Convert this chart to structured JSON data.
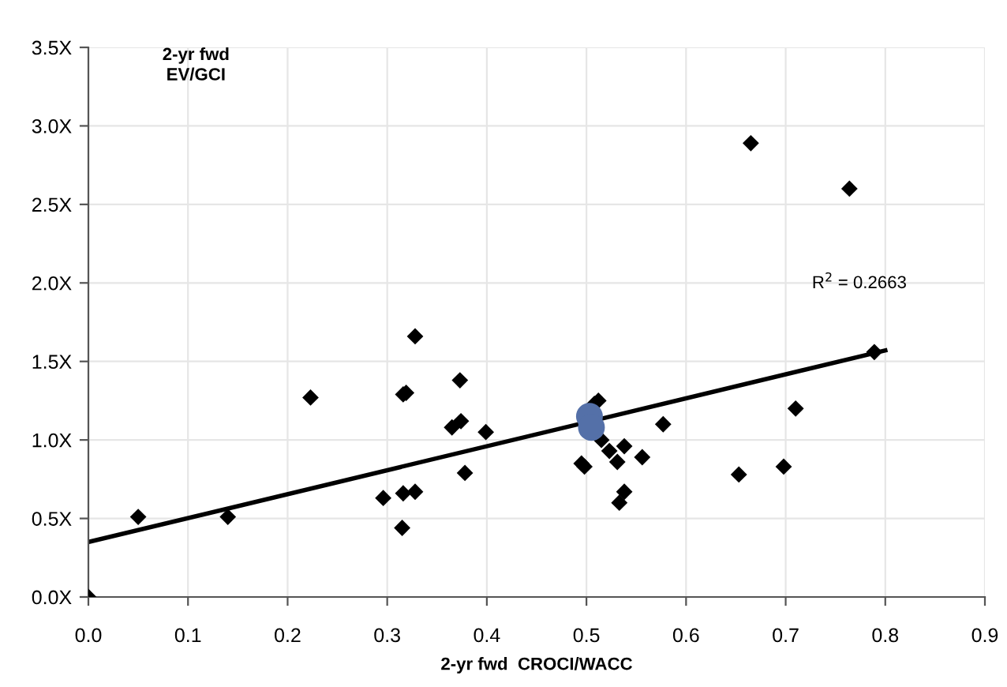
{
  "chart_data": {
    "type": "scatter",
    "ylabel": "2-yr fwd\nEV/GCI",
    "xlabel": "2-yr fwd  CROCI/WACC",
    "xlim": [
      0,
      0.9
    ],
    "xticks": [
      {
        "value": 0,
        "label": "0.0"
      },
      0.1,
      0.2,
      0.3,
      0.4,
      0.5,
      0.6,
      0.7,
      0.8,
      0.9
    ],
    "ylim": [
      0,
      3.5
    ],
    "yticks": [
      {
        "value": 0,
        "label": "0.0X"
      },
      {
        "value": 0.5,
        "label": "0.5X"
      },
      {
        "value": 1,
        "label": "1.0X"
      },
      {
        "value": 1.5,
        "label": "1.5X"
      },
      {
        "value": 2,
        "label": "2.0X"
      },
      {
        "value": 2.5,
        "label": "2.5X"
      },
      {
        "value": 3,
        "label": "3.0X"
      },
      {
        "value": 3.5,
        "label": "3.5X"
      }
    ],
    "grid": true,
    "legend": false,
    "annotations": [
      "R$^{2}$ = 0.2663"
    ],
    "series": [
      {
        "color": "#000000",
        "marker": "diamond",
        "x": [
          0,
          0.05,
          0.14,
          0.223,
          0.296,
          0.316,
          0.319,
          0.328,
          0.316,
          0.328,
          0.315,
          0.373,
          0.365,
          0.374,
          0.399,
          0.378,
          0.512,
          0.508,
          0.515,
          0.523,
          0.538,
          0.531,
          0.556,
          0.495,
          0.498,
          0.538,
          0.533,
          0.577,
          0.653,
          0.698,
          0.71,
          0.789,
          0.665,
          0.764
        ],
        "values": [
          0,
          0.51,
          0.51,
          1.27,
          0.63,
          1.29,
          1.3,
          1.66,
          0.66,
          0.67,
          0.44,
          1.38,
          1.08,
          1.12,
          1.05,
          0.79,
          1.25,
          1.23,
          1.0,
          0.93,
          0.96,
          0.86,
          0.89,
          0.85,
          0.83,
          0.67,
          0.6,
          1.1,
          0.78,
          0.83,
          1.2,
          1.56,
          2.89,
          2.6
        ]
      },
      {
        "color": "#5470a8",
        "marker": "circle",
        "x": [
          0.503,
          0.505
        ],
        "values": [
          1.15,
          1.08
        ]
      },
      {
        "type": "line",
        "color": "#000000",
        "line_style": "solid",
        "x": [
          0,
          0.8
        ],
        "values": [
          0.35,
          1.57
        ]
      }
    ]
  }
}
